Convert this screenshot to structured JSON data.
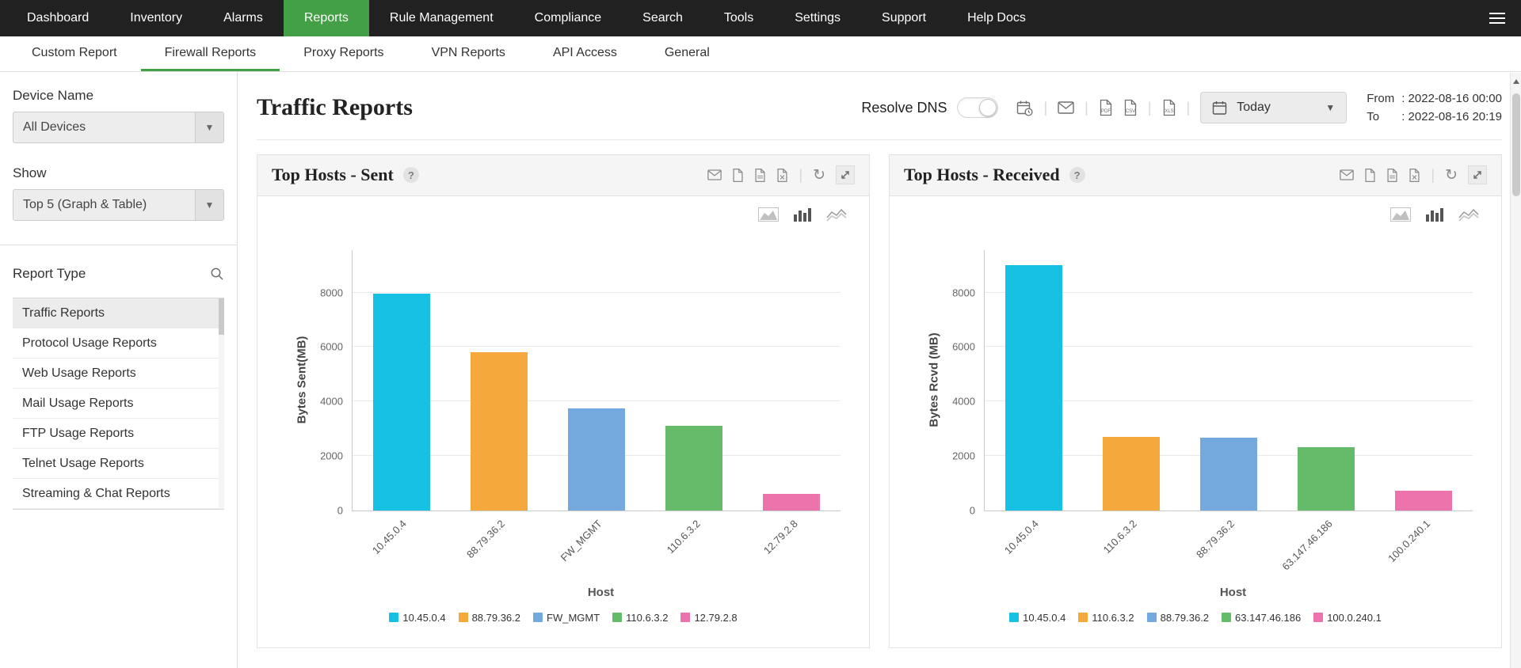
{
  "nav": {
    "items": [
      "Dashboard",
      "Inventory",
      "Alarms",
      "Reports",
      "Rule Management",
      "Compliance",
      "Search",
      "Tools",
      "Settings",
      "Support",
      "Help Docs"
    ],
    "active": "Reports"
  },
  "subnav": {
    "items": [
      "Custom Report",
      "Firewall Reports",
      "Proxy Reports",
      "VPN Reports",
      "API Access",
      "General"
    ],
    "active": "Firewall Reports"
  },
  "sidebar": {
    "device_name_label": "Device Name",
    "device_select_value": "All Devices",
    "show_label": "Show",
    "show_select_value": "Top 5 (Graph & Table)",
    "report_type_label": "Report Type",
    "report_types": [
      "Traffic Reports",
      "Protocol Usage Reports",
      "Web Usage Reports",
      "Mail Usage Reports",
      "FTP Usage Reports",
      "Telnet Usage Reports",
      "Streaming & Chat Reports"
    ],
    "selected_report_type": "Traffic Reports"
  },
  "toolbar": {
    "title": "Traffic Reports",
    "resolve_dns_label": "Resolve DNS",
    "resolve_dns_state": "off",
    "period_value": "Today",
    "from_label": "From",
    "from_value": ": 2022-08-16 00:00",
    "to_label": "To",
    "to_value": ": 2022-08-16 20:19"
  },
  "icons": {
    "toolbar": [
      "schedule-calendar-icon",
      "mail-icon",
      "pdf-file-icon",
      "csv-file-icon",
      "excel-file-icon",
      "calendar-icon",
      "chevron-down-icon"
    ],
    "card_header": [
      "mail-icon",
      "pdf-file-icon",
      "csv-file-icon",
      "excel-file-icon",
      "refresh-icon",
      "expand-icon"
    ],
    "chart_type_switcher": [
      "area-chart-icon",
      "bar-chart-icon",
      "line-chart-icon"
    ],
    "sidebar": [
      "search-icon",
      "chevron-down-icon"
    ]
  },
  "colors": {
    "accent_green": "#43a047",
    "nav_bg": "#212121",
    "chart_palette": [
      "#16C1E4",
      "#F5A83C",
      "#74A9DD",
      "#66BB6A",
      "#ED73AD"
    ]
  },
  "chart_data": [
    {
      "type": "bar",
      "title": "Top Hosts - Sent",
      "help_badge": "?",
      "categories": [
        "10.45.0.4",
        "88.79.36.2",
        "FW_MGMT",
        "110.6.3.2",
        "12.79.2.8"
      ],
      "values": [
        7950,
        5800,
        3750,
        3100,
        600
      ],
      "colors": [
        "#16C1E4",
        "#F5A83C",
        "#74A9DD",
        "#66BB6A",
        "#ED73AD"
      ],
      "xlabel": "Host",
      "ylabel": "Bytes Sent(MB)",
      "yticks": [
        0,
        2000,
        4000,
        6000,
        8000
      ],
      "ymax": 9600,
      "grid": true,
      "legend_position": "bottom"
    },
    {
      "type": "bar",
      "title": "Top Hosts - Received",
      "help_badge": "?",
      "categories": [
        "10.45.0.4",
        "110.6.3.2",
        "88.79.36.2",
        "63.147.46.186",
        "100.0.240.1"
      ],
      "values": [
        9000,
        2700,
        2650,
        2300,
        700
      ],
      "colors": [
        "#16C1E4",
        "#F5A83C",
        "#74A9DD",
        "#66BB6A",
        "#ED73AD"
      ],
      "xlabel": "Host",
      "ylabel": "Bytes Rcvd (MB)",
      "yticks": [
        0,
        2000,
        4000,
        6000,
        8000
      ],
      "ymax": 9600,
      "grid": true,
      "legend_position": "bottom"
    }
  ]
}
